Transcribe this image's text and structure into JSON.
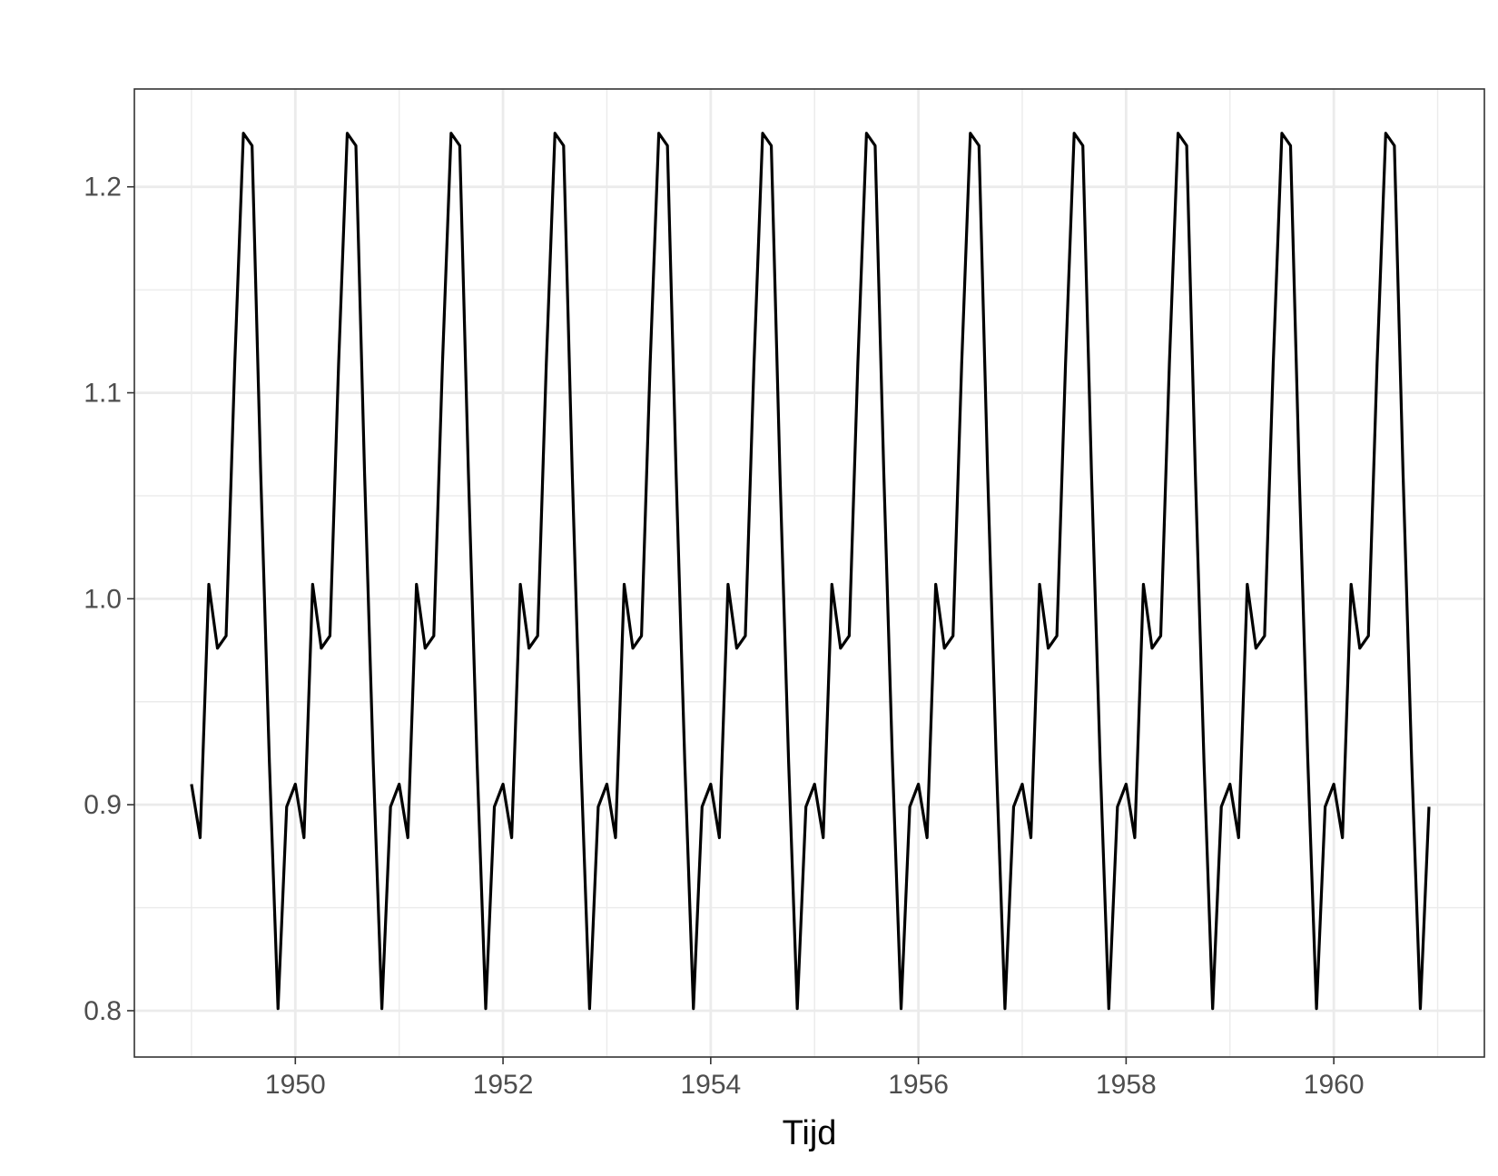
{
  "chart_data": {
    "type": "line",
    "title": "",
    "xlabel": "Tijd",
    "ylabel": "",
    "xlim": [
      1948.45,
      1961.45
    ],
    "ylim": [
      0.7775,
      1.2475
    ],
    "x_ticks": [
      1950,
      1952,
      1954,
      1956,
      1958,
      1960
    ],
    "x_tick_labels": [
      "1950",
      "1952",
      "1954",
      "1956",
      "1958",
      "1960"
    ],
    "y_ticks": [
      0.8,
      0.9,
      1.0,
      1.1,
      1.2
    ],
    "y_tick_labels": [
      "0.8",
      "0.9",
      "1.0",
      "1.1",
      "1.2"
    ],
    "grid": true,
    "legend": "none",
    "colors": {
      "line": "#000000",
      "grid": "#ebebeb",
      "panel_border": "#333333",
      "background": "#ffffff"
    },
    "series": [
      {
        "start_year": 1949,
        "frequency": 12,
        "seasonal_pattern": [
          0.91,
          0.884,
          1.007,
          0.976,
          0.982,
          1.114,
          1.226,
          1.22,
          1.061,
          0.921,
          0.801,
          0.899
        ],
        "years": 12
      }
    ]
  }
}
